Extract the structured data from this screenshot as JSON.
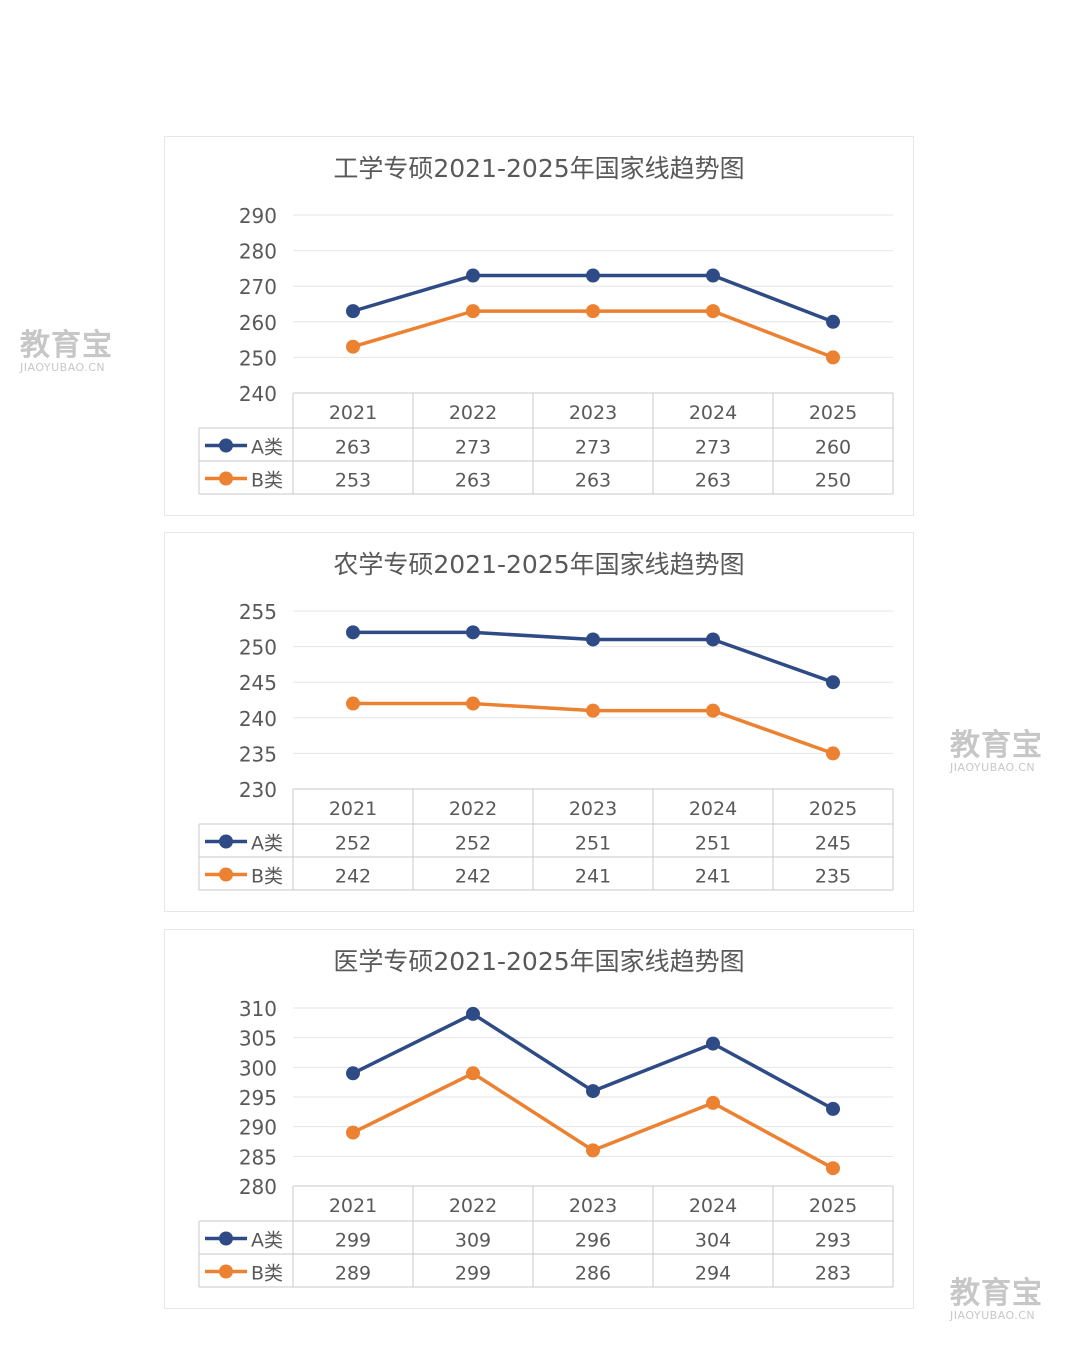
{
  "watermark": {
    "main": "教育宝",
    "sub": "JIAOYUBAO.CN"
  },
  "chart_data": [
    {
      "type": "line",
      "title": "工学专硕2021-2025年国家线趋势图",
      "categories": [
        "2021",
        "2022",
        "2023",
        "2024",
        "2025"
      ],
      "ylim": [
        240,
        290
      ],
      "yticks": [
        240,
        250,
        260,
        270,
        280,
        290
      ],
      "series": [
        {
          "name": "A类",
          "color": "#2f4b86",
          "values": [
            263,
            273,
            273,
            273,
            260
          ]
        },
        {
          "name": "B类",
          "color": "#ec8131",
          "values": [
            253,
            263,
            263,
            263,
            250
          ]
        }
      ],
      "grid": true,
      "data_table": true
    },
    {
      "type": "line",
      "title": "农学专硕2021-2025年国家线趋势图",
      "categories": [
        "2021",
        "2022",
        "2023",
        "2024",
        "2025"
      ],
      "ylim": [
        230,
        255
      ],
      "yticks": [
        230,
        235,
        240,
        245,
        250,
        255
      ],
      "series": [
        {
          "name": "A类",
          "color": "#2f4b86",
          "values": [
            252,
            252,
            251,
            251,
            245
          ]
        },
        {
          "name": "B类",
          "color": "#ec8131",
          "values": [
            242,
            242,
            241,
            241,
            235
          ]
        }
      ],
      "grid": true,
      "data_table": true
    },
    {
      "type": "line",
      "title": "医学专硕2021-2025年国家线趋势图",
      "categories": [
        "2021",
        "2022",
        "2023",
        "2024",
        "2025"
      ],
      "ylim": [
        280,
        310
      ],
      "yticks": [
        280,
        285,
        290,
        295,
        300,
        305,
        310
      ],
      "series": [
        {
          "name": "A类",
          "color": "#2f4b86",
          "values": [
            299,
            309,
            296,
            304,
            293
          ]
        },
        {
          "name": "B类",
          "color": "#ec8131",
          "values": [
            289,
            299,
            286,
            294,
            283
          ]
        }
      ],
      "grid": true,
      "data_table": true
    }
  ]
}
